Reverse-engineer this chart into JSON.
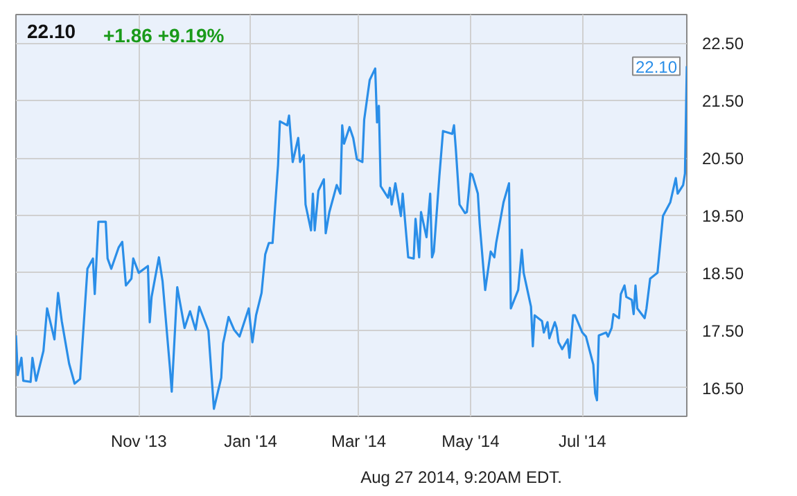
{
  "chart_data": {
    "type": "line",
    "title": "22.10",
    "subtitle": "+1.86 +9.19%",
    "annotations": [
      {
        "text": "22.10",
        "x": "2014-08-27",
        "y": 22.1
      },
      "Aug 27 2014, 9:20AM EDT."
    ],
    "x": [
      "2013-08-26",
      "2013-08-27",
      "2013-08-29",
      "2013-08-30",
      "2013-09-03",
      "2013-09-04",
      "2013-09-06",
      "2013-09-10",
      "2013-09-12",
      "2013-09-16",
      "2013-09-18",
      "2013-09-20",
      "2013-09-24",
      "2013-09-27",
      "2013-09-30",
      "2013-10-04",
      "2013-10-07",
      "2013-10-08",
      "2013-10-10",
      "2013-10-14",
      "2013-10-15",
      "2013-10-17",
      "2013-10-21",
      "2013-10-23",
      "2013-10-25",
      "2013-10-28",
      "2013-10-29",
      "2013-11-01",
      "2013-11-06",
      "2013-11-07",
      "2013-11-08",
      "2013-11-12",
      "2013-11-14",
      "2013-11-18",
      "2013-11-19",
      "2013-11-22",
      "2013-11-26",
      "2013-11-29",
      "2013-12-02",
      "2013-12-04",
      "2013-12-09",
      "2013-12-12",
      "2013-12-16",
      "2013-12-17",
      "2013-12-20",
      "2013-12-23",
      "2013-12-26",
      "2013-12-31",
      "2014-01-02",
      "2014-01-04",
      "2014-01-07",
      "2014-01-09",
      "2014-01-11",
      "2014-01-13",
      "2014-01-16",
      "2014-01-17",
      "2014-01-21",
      "2014-01-22",
      "2014-01-24",
      "2014-01-27",
      "2014-01-28",
      "2014-01-30",
      "2014-01-31",
      "2014-02-03",
      "2014-02-04",
      "2014-02-05",
      "2014-02-07",
      "2014-02-10",
      "2014-02-11",
      "2014-02-13",
      "2014-02-17",
      "2014-02-19",
      "2014-02-20",
      "2014-02-21",
      "2014-02-24",
      "2014-02-26",
      "2014-02-28",
      "2014-03-03",
      "2014-03-04",
      "2014-03-07",
      "2014-03-10",
      "2014-03-11",
      "2014-03-12",
      "2014-03-13",
      "2014-03-17",
      "2014-03-18",
      "2014-03-19",
      "2014-03-21",
      "2014-03-24",
      "2014-03-25",
      "2014-03-28",
      "2014-03-31",
      "2014-04-01",
      "2014-04-03",
      "2014-04-04",
      "2014-04-07",
      "2014-04-09",
      "2014-04-10",
      "2014-04-11",
      "2014-04-14",
      "2014-04-16",
      "2014-04-21",
      "2014-04-22",
      "2014-04-23",
      "2014-04-25",
      "2014-04-28",
      "2014-04-29",
      "2014-05-01",
      "2014-05-02",
      "2014-05-05",
      "2014-05-06",
      "2014-05-09",
      "2014-05-12",
      "2014-05-14",
      "2014-05-15",
      "2014-05-19",
      "2014-05-22",
      "2014-05-23",
      "2014-05-27",
      "2014-05-29",
      "2014-05-30",
      "2014-06-03",
      "2014-06-04",
      "2014-06-05",
      "2014-06-09",
      "2014-06-10",
      "2014-06-12",
      "2014-06-13",
      "2014-06-16",
      "2014-06-17",
      "2014-06-18",
      "2014-06-20",
      "2014-06-23",
      "2014-06-24",
      "2014-06-26",
      "2014-06-27",
      "2014-07-01",
      "2014-07-03",
      "2014-07-07",
      "2014-07-08",
      "2014-07-09",
      "2014-07-10",
      "2014-07-14",
      "2014-07-15",
      "2014-07-17",
      "2014-07-18",
      "2014-07-21",
      "2014-07-22",
      "2014-07-24",
      "2014-07-25",
      "2014-07-28",
      "2014-07-29",
      "2014-07-30",
      "2014-07-31",
      "2014-08-04",
      "2014-08-05",
      "2014-08-07",
      "2014-08-11",
      "2014-08-14",
      "2014-08-18",
      "2014-08-21",
      "2014-08-22",
      "2014-08-25",
      "2014-08-26",
      "2014-08-27"
    ],
    "series": [
      {
        "color": "#2a8ee8",
        "values": [
          17.41,
          16.72,
          17.02,
          16.62,
          16.6,
          17.02,
          16.62,
          17.14,
          17.88,
          17.34,
          18.15,
          17.66,
          16.92,
          16.57,
          16.65,
          18.57,
          18.75,
          18.13,
          19.39,
          19.39,
          18.75,
          18.57,
          18.94,
          19.04,
          18.28,
          18.4,
          18.75,
          18.5,
          18.62,
          17.64,
          18.08,
          18.77,
          18.35,
          16.85,
          16.43,
          18.25,
          17.54,
          17.83,
          17.51,
          17.91,
          17.49,
          16.13,
          16.67,
          17.27,
          17.73,
          17.51,
          17.39,
          17.88,
          17.29,
          17.76,
          18.15,
          18.82,
          19.02,
          19.02,
          20.38,
          21.14,
          21.07,
          21.24,
          20.43,
          20.85,
          20.43,
          20.55,
          19.69,
          19.24,
          19.88,
          19.24,
          19.93,
          20.13,
          19.19,
          19.56,
          20.03,
          19.88,
          21.07,
          20.75,
          21.04,
          20.85,
          20.48,
          20.43,
          21.17,
          21.86,
          22.06,
          21.12,
          21.41,
          20.01,
          19.81,
          19.98,
          19.69,
          20.06,
          19.49,
          19.88,
          18.77,
          18.75,
          19.44,
          18.77,
          19.56,
          19.12,
          19.88,
          18.77,
          18.87,
          20.18,
          20.97,
          20.92,
          21.07,
          20.65,
          19.69,
          19.54,
          19.56,
          20.23,
          20.21,
          19.88,
          19.36,
          18.2,
          18.87,
          18.77,
          19.02,
          19.73,
          20.06,
          17.88,
          18.2,
          18.9,
          18.5,
          17.91,
          17.22,
          17.76,
          17.66,
          17.46,
          17.64,
          17.36,
          17.64,
          17.54,
          17.29,
          17.17,
          17.34,
          17.02,
          17.76,
          17.76,
          17.46,
          17.39,
          16.9,
          16.4,
          16.28,
          17.41,
          17.46,
          17.39,
          17.54,
          17.78,
          17.71,
          18.13,
          18.28,
          18.08,
          18.03,
          17.78,
          18.28,
          17.88,
          17.71,
          17.88,
          18.4,
          18.5,
          19.49,
          19.73,
          20.15,
          19.88,
          20.03,
          20.23,
          22.1
        ]
      }
    ],
    "xlim": [
      "2013-08-26",
      "2014-08-27"
    ],
    "xticks": [
      {
        "value": "2013-11-01",
        "label": "Nov '13"
      },
      {
        "value": "2014-01-01",
        "label": "Jan '14"
      },
      {
        "value": "2014-03-01",
        "label": "Mar '14"
      },
      {
        "value": "2014-05-01",
        "label": "May '14"
      },
      {
        "value": "2014-07-01",
        "label": "Jul '14"
      }
    ],
    "ylim": [
      16.0,
      23.0
    ],
    "yticks": [
      {
        "value": 16.5,
        "label": "16.50"
      },
      {
        "value": 17.5,
        "label": "17.50"
      },
      {
        "value": 18.5,
        "label": "18.50"
      },
      {
        "value": 19.5,
        "label": "19.50"
      },
      {
        "value": 20.5,
        "label": "20.50"
      },
      {
        "value": 21.5,
        "label": "21.50"
      },
      {
        "value": 22.5,
        "label": "22.50"
      }
    ],
    "grid": true
  }
}
